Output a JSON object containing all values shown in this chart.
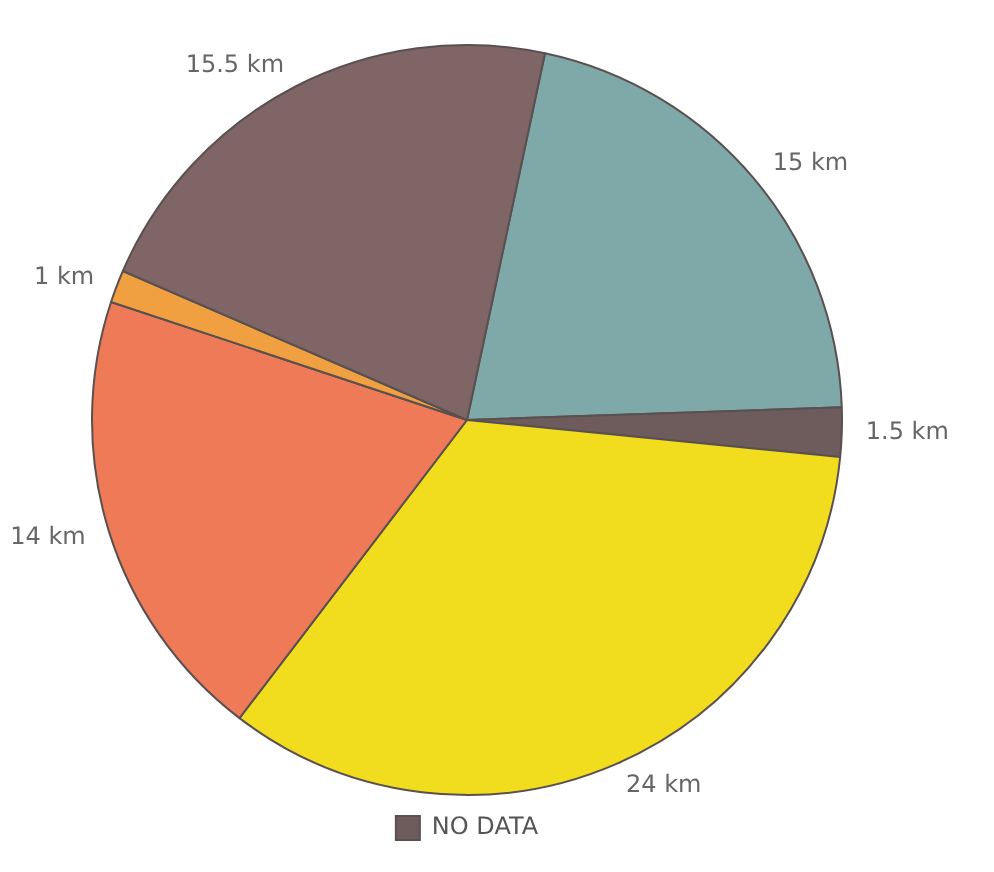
{
  "chart_data": {
    "type": "pie",
    "legend": "bottom",
    "categories": [
      null,
      "NO DATA",
      null,
      null,
      null,
      null
    ],
    "values": [
      15,
      1.5,
      24,
      14,
      1,
      15.5
    ],
    "value_labels": [
      "15 km",
      "1.5 km",
      "24 km",
      "14 km",
      "1 km",
      "15.5 km"
    ],
    "colors": [
      "#7fa8a8",
      "#6e5c5c",
      "#f2dc1e",
      "#ee7a58",
      "#f0a040",
      "#7f6566"
    ]
  }
}
